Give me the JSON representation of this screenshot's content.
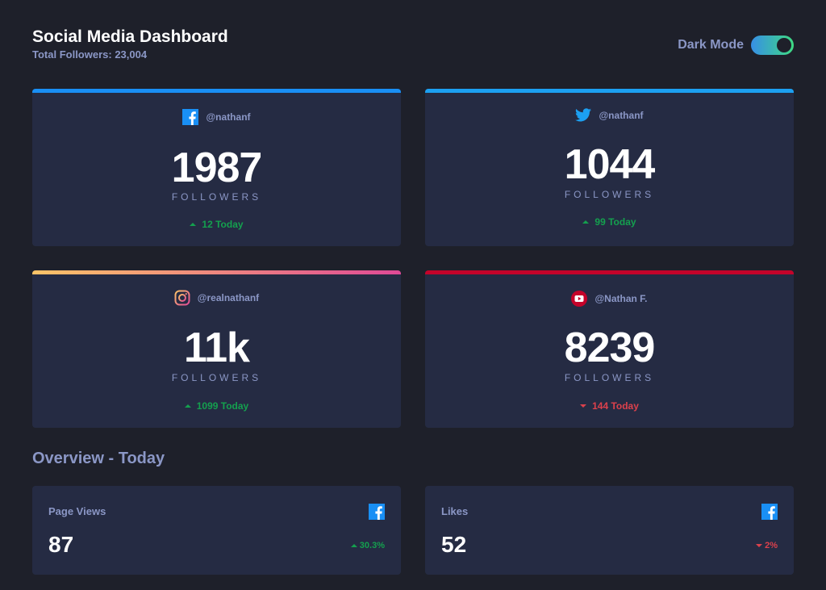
{
  "header": {
    "title": "Social Media Dashboard",
    "total_followers": "Total Followers: 23,004",
    "toggle_label": "Dark Mode",
    "toggle_on": true
  },
  "cards": [
    {
      "platform": "facebook",
      "icon": "facebook-icon",
      "handle": "@nathanf",
      "count": "1987",
      "label": "FOLLOWERS",
      "today": "12 Today",
      "trend": "up"
    },
    {
      "platform": "twitter",
      "icon": "twitter-icon",
      "handle": "@nathanf",
      "count": "1044",
      "label": "FOLLOWERS",
      "today": "99 Today",
      "trend": "up"
    },
    {
      "platform": "instagram",
      "icon": "instagram-icon",
      "handle": "@realnathanf",
      "count": "11k",
      "label": "FOLLOWERS",
      "today": "1099 Today",
      "trend": "up"
    },
    {
      "platform": "youtube",
      "icon": "youtube-icon",
      "handle": "@Nathan F.",
      "count": "8239",
      "label": "FOLLOWERS",
      "today": "144 Today",
      "trend": "down"
    }
  ],
  "overview": {
    "title": "Overview - Today",
    "items": [
      {
        "label": "Page Views",
        "icon": "facebook-icon",
        "value": "87",
        "change": "30.3%",
        "trend": "up"
      },
      {
        "label": "Likes",
        "icon": "facebook-icon",
        "value": "52",
        "change": "2%",
        "trend": "down"
      }
    ]
  },
  "colors": {
    "background": "#1e202a",
    "card": "#252b43",
    "muted_text": "#8b97c6",
    "facebook": "#198ff5",
    "twitter": "#1ca0f2",
    "instagram_start": "#fdc468",
    "instagram_end": "#df4996",
    "youtube": "#c4032a",
    "up": "#14a04e",
    "down": "#dc414c"
  }
}
